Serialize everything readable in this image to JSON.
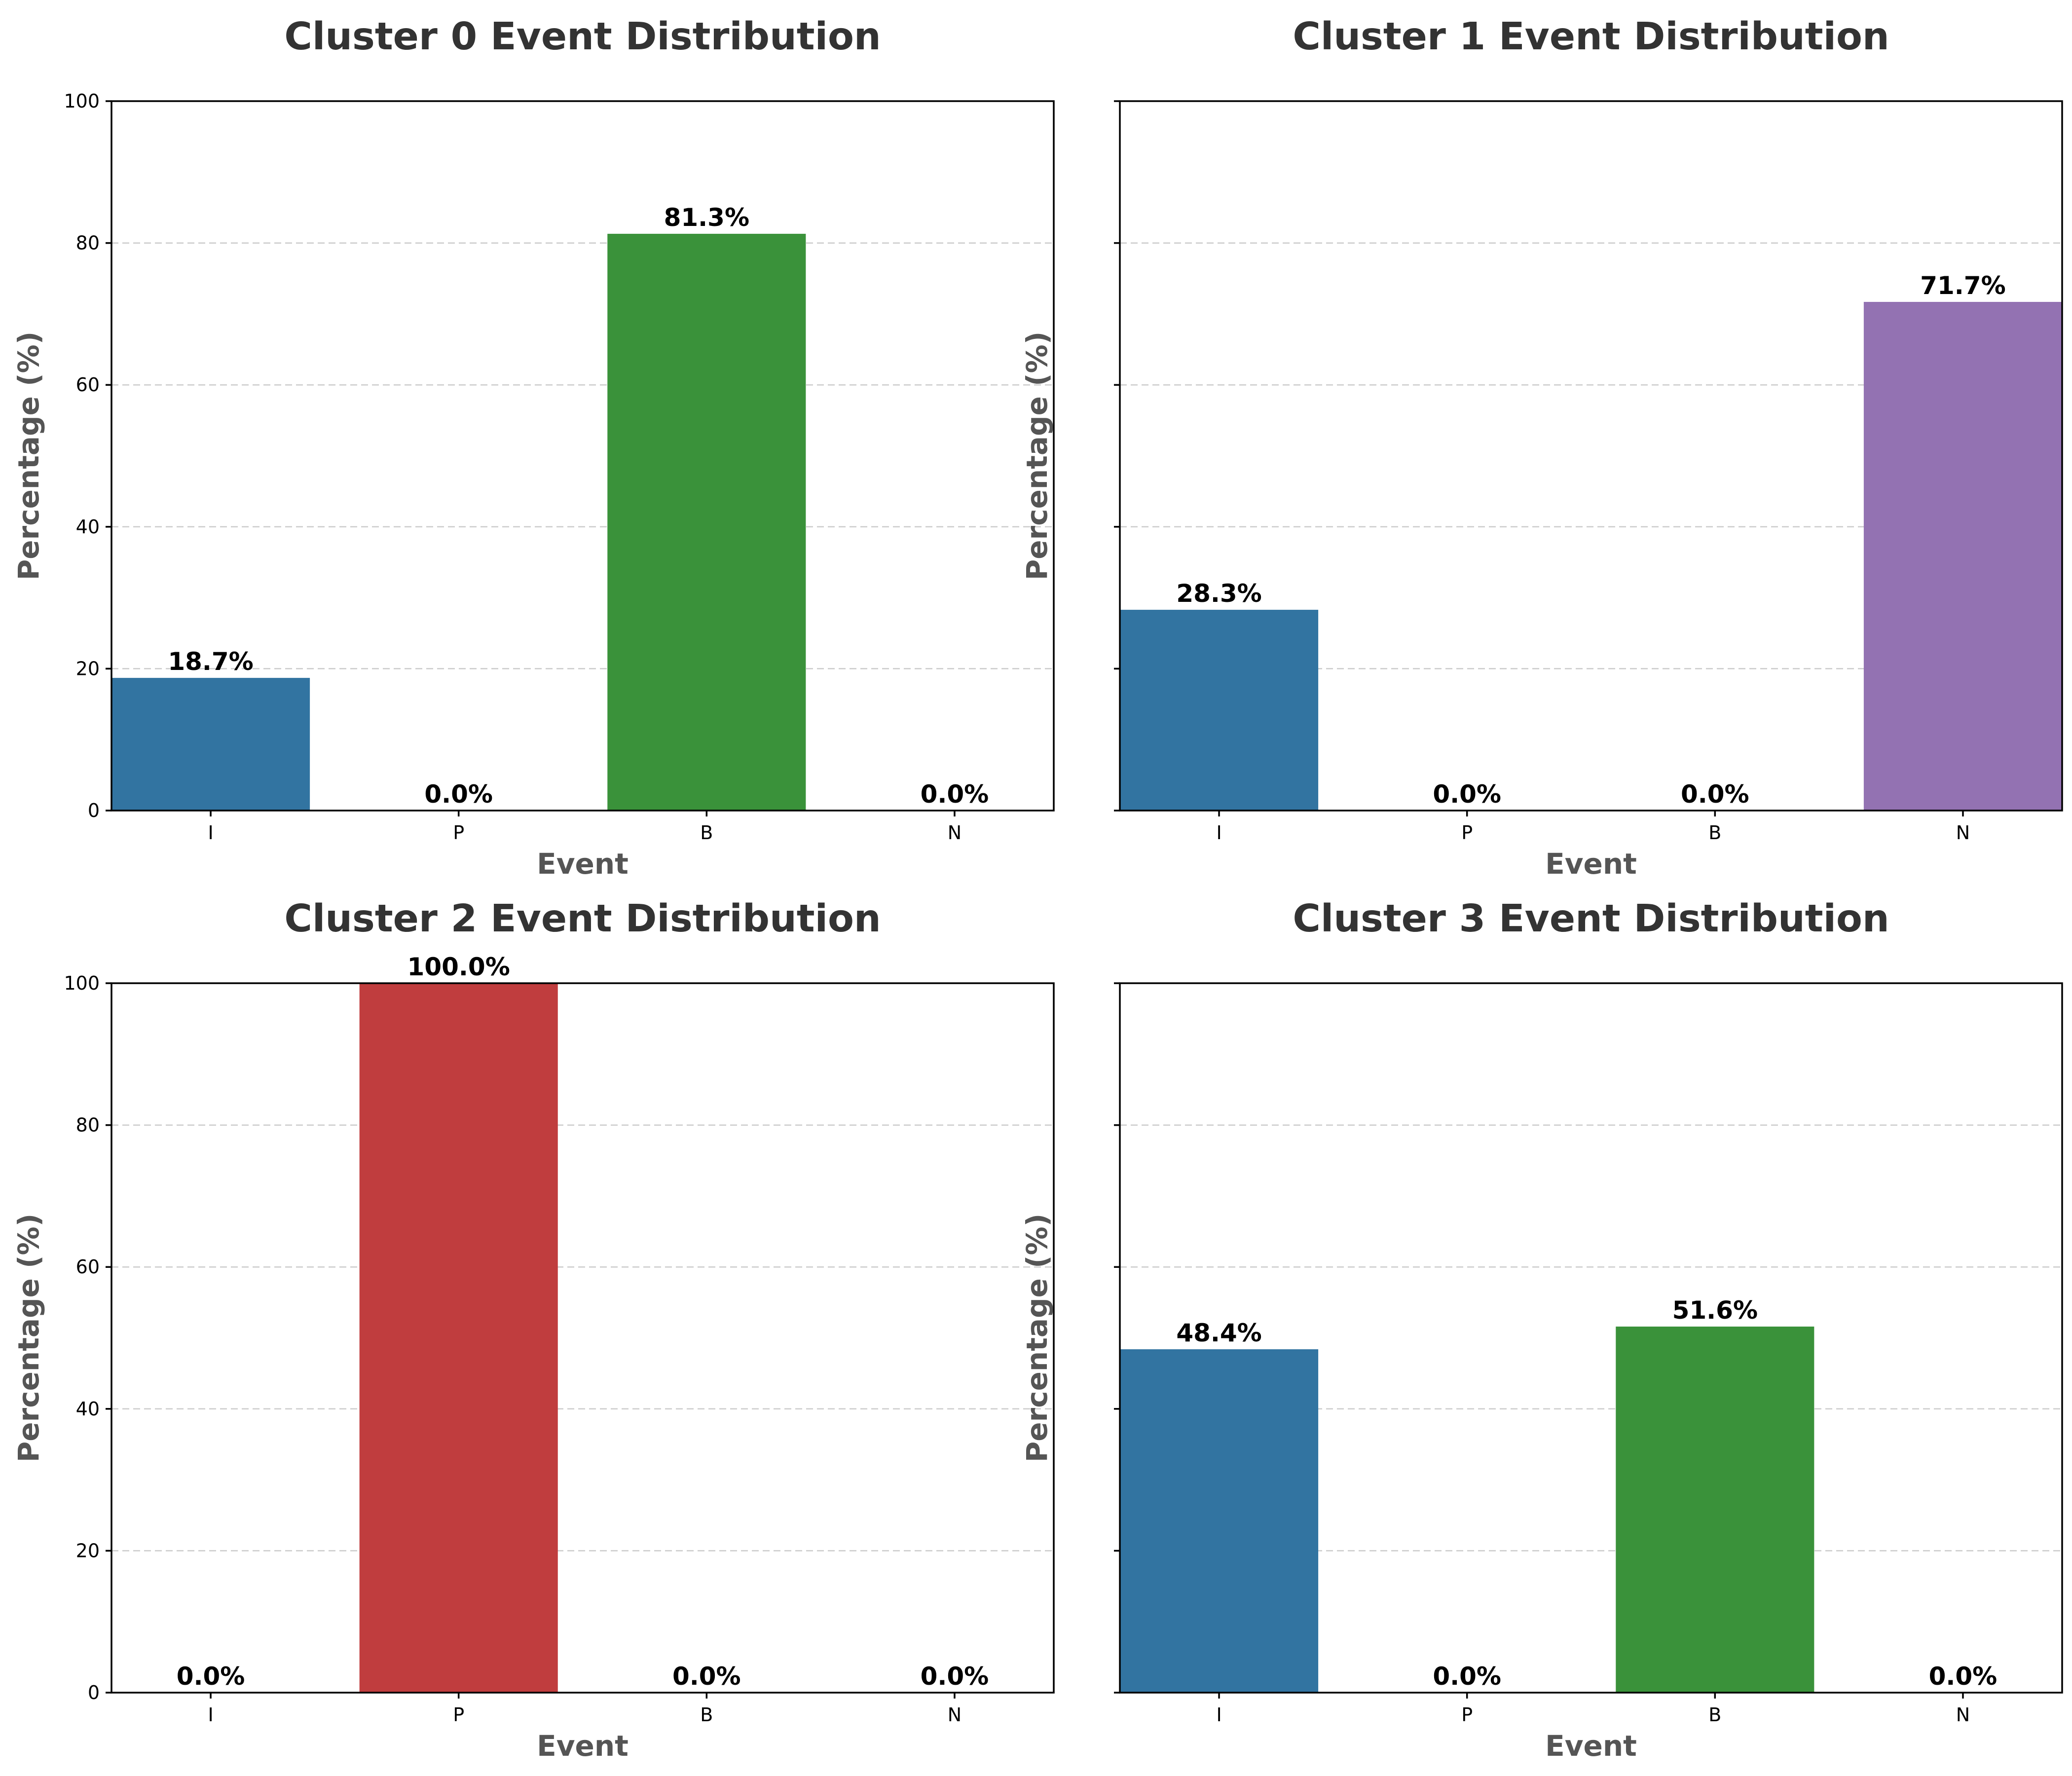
{
  "chart_data": [
    {
      "type": "bar",
      "title": "Cluster 0 Event Distribution",
      "xlabel": "Event",
      "ylabel": "Percentage (%)",
      "categories": [
        "I",
        "P",
        "B",
        "N"
      ],
      "values": [
        18.7,
        0.0,
        81.3,
        0.0
      ],
      "labels": [
        "18.7%",
        "0.0%",
        "81.3%",
        "0.0%"
      ],
      "colors": [
        "#3274a1",
        "#c03d3e",
        "#3a923a",
        "#9372b2"
      ],
      "ylim": [
        0,
        100
      ],
      "yticks": [
        "0",
        "20",
        "40",
        "60",
        "80",
        "100"
      ],
      "show_ytick_labels": true,
      "grid": "y-dashed"
    },
    {
      "type": "bar",
      "title": "Cluster 1 Event Distribution",
      "xlabel": "Event",
      "ylabel": "Percentage (%)",
      "categories": [
        "I",
        "P",
        "B",
        "N"
      ],
      "values": [
        28.3,
        0.0,
        0.0,
        71.7
      ],
      "labels": [
        "28.3%",
        "0.0%",
        "0.0%",
        "71.7%"
      ],
      "colors": [
        "#3274a1",
        "#c03d3e",
        "#3a923a",
        "#9372b2"
      ],
      "ylim": [
        0,
        100
      ],
      "yticks": [
        "0",
        "20",
        "40",
        "60",
        "80",
        "100"
      ],
      "show_ytick_labels": false,
      "grid": "y-dashed"
    },
    {
      "type": "bar",
      "title": "Cluster 2 Event Distribution",
      "xlabel": "Event",
      "ylabel": "Percentage (%)",
      "categories": [
        "I",
        "P",
        "B",
        "N"
      ],
      "values": [
        0.0,
        100.0,
        0.0,
        0.0
      ],
      "labels": [
        "0.0%",
        "100.0%",
        "0.0%",
        "0.0%"
      ],
      "colors": [
        "#3274a1",
        "#c03d3e",
        "#3a923a",
        "#9372b2"
      ],
      "ylim": [
        0,
        100
      ],
      "yticks": [
        "0",
        "20",
        "40",
        "60",
        "80",
        "100"
      ],
      "show_ytick_labels": true,
      "grid": "y-dashed"
    },
    {
      "type": "bar",
      "title": "Cluster 3 Event Distribution",
      "xlabel": "Event",
      "ylabel": "Percentage (%)",
      "categories": [
        "I",
        "P",
        "B",
        "N"
      ],
      "values": [
        48.4,
        0.0,
        51.6,
        0.0
      ],
      "labels": [
        "48.4%",
        "0.0%",
        "51.6%",
        "0.0%"
      ],
      "colors": [
        "#3274a1",
        "#c03d3e",
        "#3a923a",
        "#9372b2"
      ],
      "ylim": [
        0,
        100
      ],
      "yticks": [
        "0",
        "20",
        "40",
        "60",
        "80",
        "100"
      ],
      "show_ytick_labels": false,
      "grid": "y-dashed"
    }
  ]
}
